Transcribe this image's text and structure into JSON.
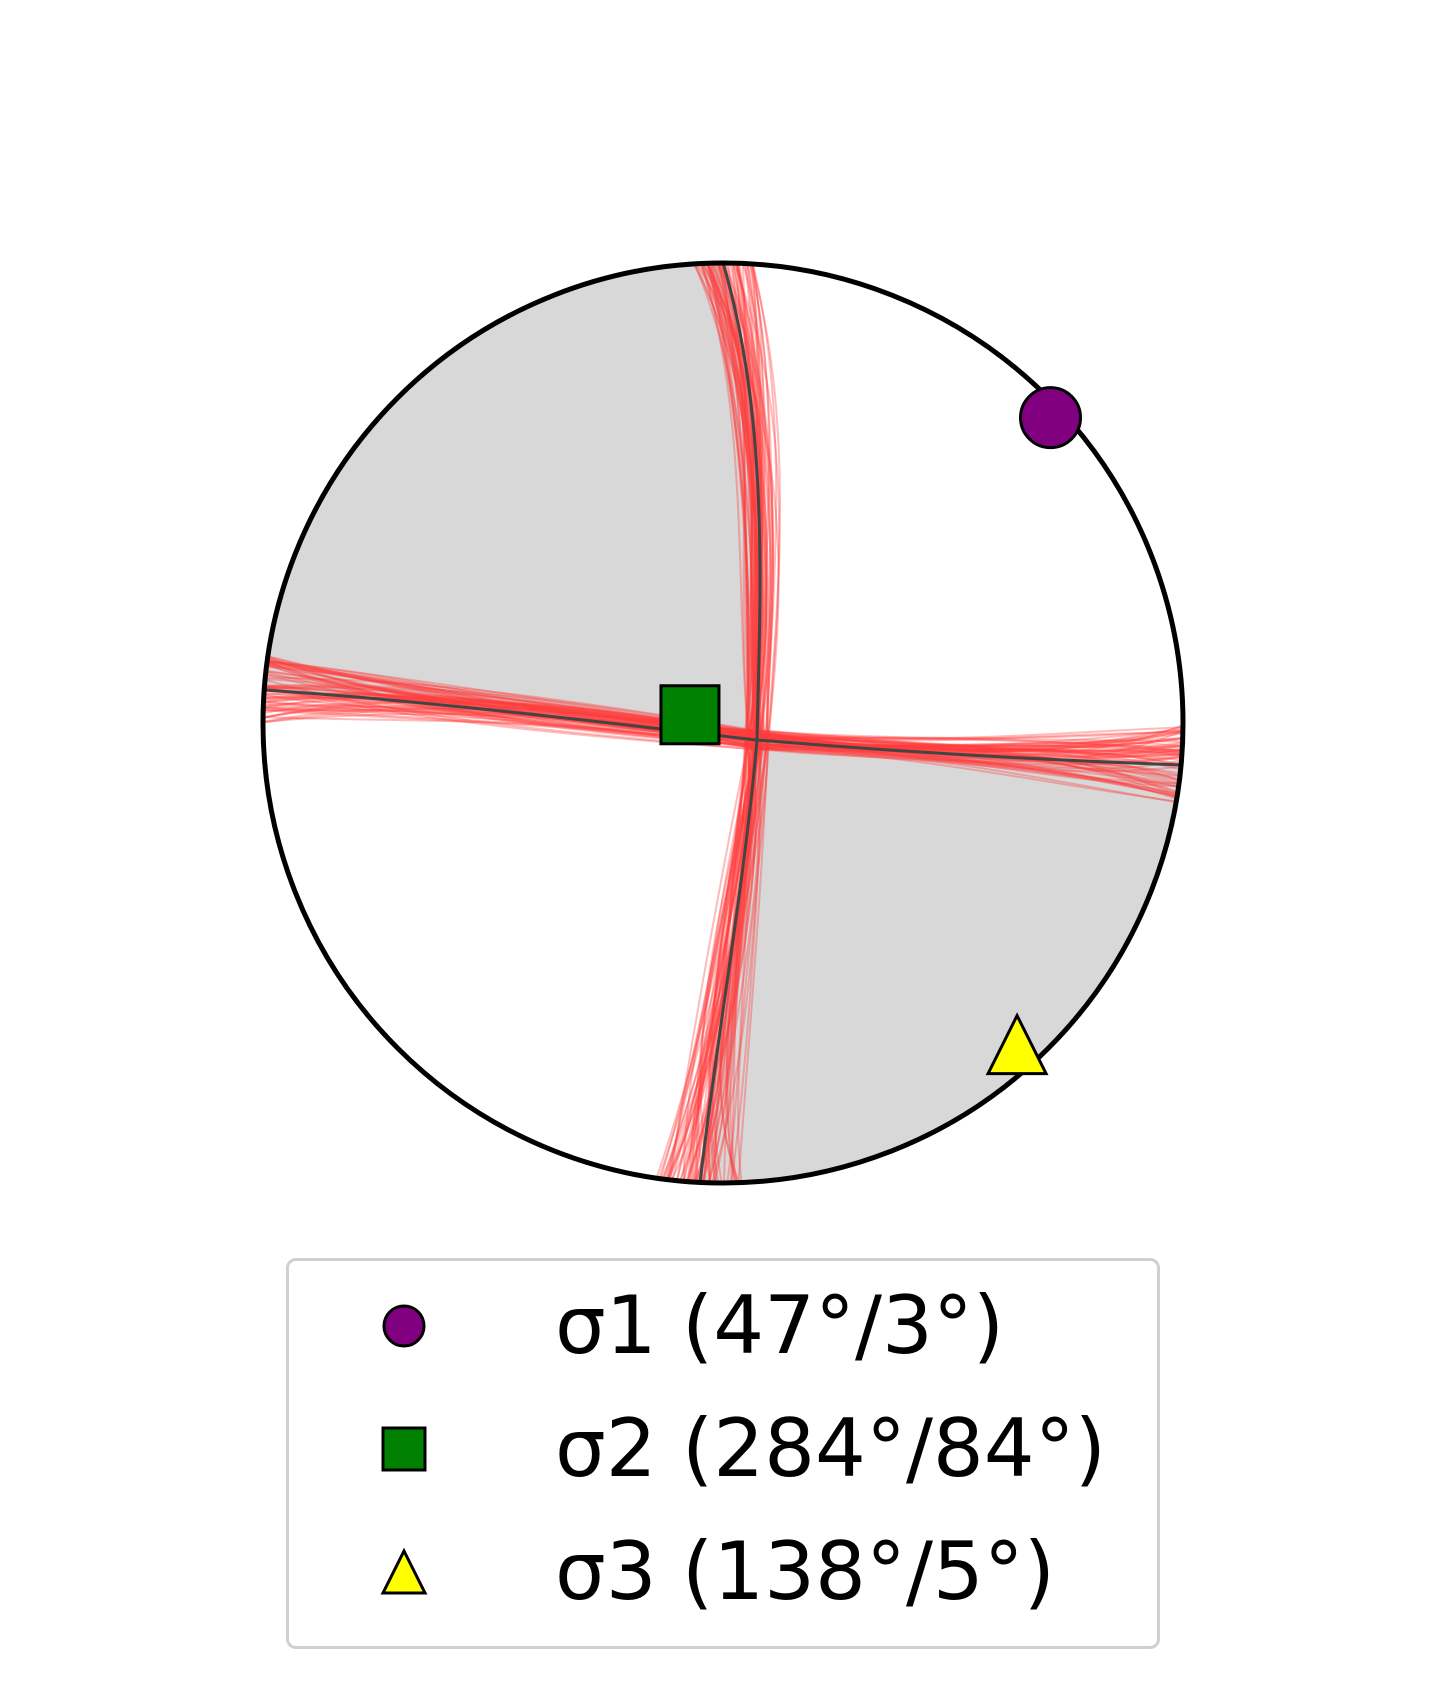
{
  "colors": {
    "background": "#ffffff",
    "compression_quadrant": "#d8d8d8",
    "nodal_plane_mean": "#444444",
    "nodal_plane_samples": "#ff3b3b",
    "outline": "#000000",
    "legend_border": "#d0d0d0"
  },
  "stress_axes": [
    {
      "id": "sigma1",
      "symbol": "circle-marker",
      "color": "#800080",
      "trend": 47,
      "plunge": 3,
      "label": "σ1 (47°/3°)"
    },
    {
      "id": "sigma2",
      "symbol": "square-marker",
      "color": "#008000",
      "trend": 284,
      "plunge": 84,
      "label": "σ2 (284°/84°)"
    },
    {
      "id": "sigma3",
      "symbol": "triangle-marker",
      "color": "#ffff00",
      "trend": 138,
      "plunge": 5,
      "label": "σ3 (138°/5°)"
    }
  ],
  "legend": {
    "placement": "bottom-center",
    "entries": [
      "σ1 (47°/3°)",
      "σ2 (284°/84°)",
      "σ3 (138°/5°)"
    ]
  }
}
